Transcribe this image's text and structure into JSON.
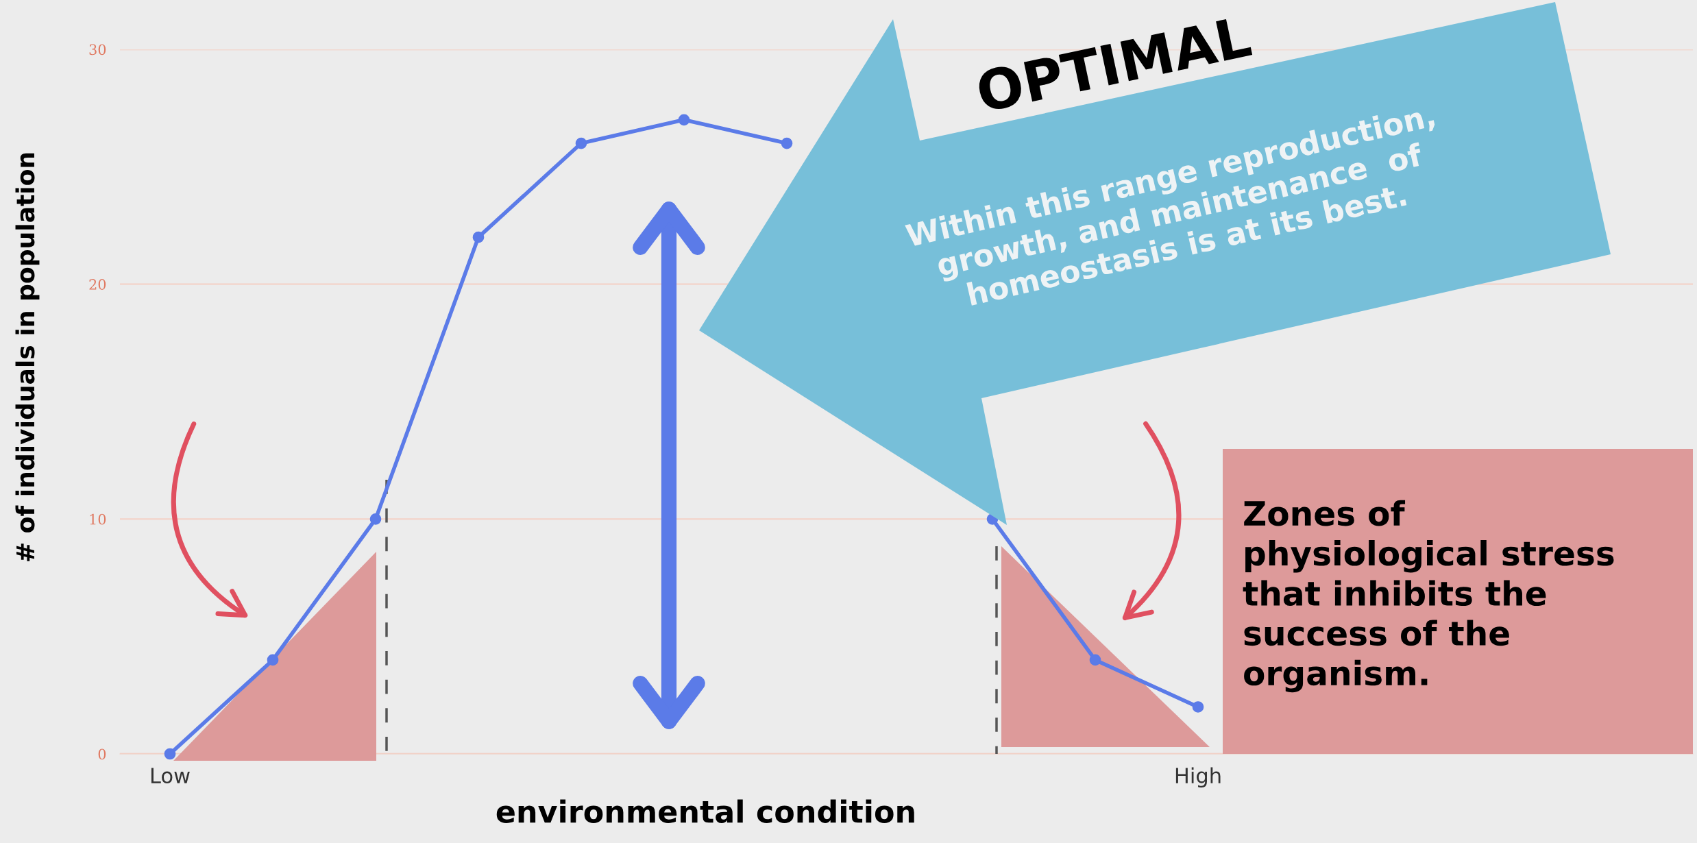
{
  "chart_data": {
    "type": "line",
    "xlabel": "environmental condition",
    "ylabel": "# of individuals in population",
    "categories": [
      "Low",
      null,
      null,
      null,
      null,
      null,
      null,
      null,
      null,
      null,
      "High"
    ],
    "series": [
      {
        "color": "#5b7be8",
        "values": [
          0,
          4,
          10,
          22,
          26,
          27,
          26,
          null,
          10,
          4,
          2
        ]
      }
    ],
    "ylim": [
      0,
      30
    ],
    "yticks": [
      0,
      10,
      20,
      30
    ],
    "grid": "y",
    "marker": "circle",
    "line_style": "solid",
    "annotations": [
      "OPTIMAL",
      "Within this range reproduction,\ngrowth, and maintenance  of\nhomeostasis is at its best.",
      "Zones of\nphysiological stress\nthat inhibits the\nsuccess of the\norganism."
    ]
  }
}
